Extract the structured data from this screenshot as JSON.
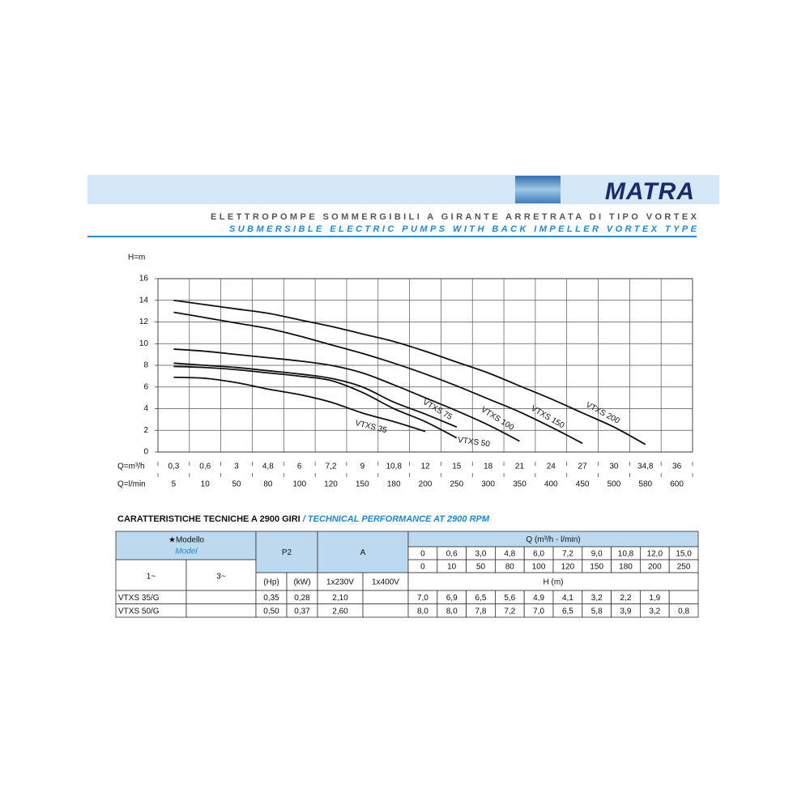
{
  "header": {
    "logo": "MATRA",
    "title_it": "ELETTROPOMPE SOMMERGIBILI A GIRANTE ARRETRATA DI TIPO VORTEX",
    "title_en": "SUBMERSIBLE ELECTRIC PUMPS WITH BACK IMPELLER VORTEX TYPE"
  },
  "chart_data": {
    "type": "line",
    "ylabel": "H=m",
    "xlabel": "Q=m³/h",
    "x2label": "Q=l/min",
    "categories": [
      "0,3",
      "0,6",
      "3",
      "4,8",
      "6",
      "7,2",
      "9",
      "10,8",
      "12",
      "15",
      "18",
      "21",
      "24",
      "27",
      "30",
      "34,8",
      "36"
    ],
    "categories_lmin": [
      "5",
      "10",
      "50",
      "80",
      "100",
      "120",
      "150",
      "180",
      "200",
      "250",
      "300",
      "350",
      "400",
      "450",
      "500",
      "580",
      "600"
    ],
    "ylim": [
      0,
      16
    ],
    "yticks": [
      0,
      2,
      4,
      6,
      8,
      10,
      12,
      14,
      16
    ],
    "grid": true,
    "series": [
      {
        "name": "VTXS 35",
        "color": "#111111",
        "values": [
          6.9,
          6.8,
          6.4,
          5.8,
          5.3,
          4.6,
          3.6,
          2.8,
          1.9,
          null,
          null,
          null,
          null,
          null,
          null,
          null,
          null
        ]
      },
      {
        "name": "VTXS 50",
        "color": "#111111",
        "values": [
          7.9,
          7.8,
          7.6,
          7.3,
          7.0,
          6.6,
          5.5,
          4.0,
          2.8,
          1.3,
          null,
          null,
          null,
          null,
          null,
          null,
          null
        ]
      },
      {
        "name": "VTXS 75",
        "color": "#111111",
        "values": [
          8.2,
          8.0,
          7.8,
          7.5,
          7.2,
          6.8,
          6.0,
          4.6,
          3.5,
          2.3,
          null,
          null,
          null,
          null,
          null,
          null,
          null
        ]
      },
      {
        "name": "VTXS 100",
        "color": "#111111",
        "values": [
          9.5,
          9.3,
          9.0,
          8.7,
          8.4,
          8.0,
          7.3,
          6.2,
          5.0,
          3.8,
          2.5,
          1.0,
          null,
          null,
          null,
          null,
          null
        ]
      },
      {
        "name": "VTXS 150",
        "color": "#111111",
        "values": [
          12.9,
          12.4,
          11.9,
          11.4,
          10.7,
          9.9,
          9.1,
          8.2,
          7.2,
          6.1,
          4.9,
          3.7,
          2.3,
          0.8,
          null,
          null,
          null
        ]
      },
      {
        "name": "VTXS 200",
        "color": "#111111",
        "values": [
          14.0,
          13.6,
          13.2,
          12.8,
          12.2,
          11.6,
          10.9,
          10.2,
          9.3,
          8.3,
          7.3,
          6.1,
          4.9,
          3.6,
          2.3,
          0.7,
          null
        ]
      }
    ]
  },
  "table": {
    "title": "CARATTERISTICHE TECNICHE A 2900 GIRI",
    "title_en": "/ TECHNICAL PERFORMANCE AT 2900 RPM",
    "model_header": "★Modello",
    "model_header_en": "Model",
    "p2": "P2",
    "a": "A",
    "q_header": "Q (m³/h - l/min)",
    "q_m3h": [
      "0",
      "0,6",
      "3,0",
      "4,8",
      "6,0",
      "7,2",
      "9,0",
      "10,8",
      "12,0",
      "15,0"
    ],
    "q_lmin": [
      "0",
      "10",
      "50",
      "80",
      "100",
      "120",
      "150",
      "180",
      "200",
      "250"
    ],
    "phase1": "1~",
    "phase3": "3~",
    "hp": "(Hp)",
    "kw": "(kW)",
    "a1": "1x230V",
    "a3": "1x400V",
    "h_header": "H (m)",
    "rows": [
      {
        "model": "VTXS 35/G",
        "hp": "0,35",
        "kw": "0,28",
        "a1": "2,10",
        "h": [
          "7,0",
          "6,9",
          "6,5",
          "5,6",
          "4,9",
          "4,1",
          "3,2",
          "2,2",
          "1,9"
        ]
      },
      {
        "model": "VTXS 50/G",
        "hp": "0,50",
        "kw": "0,37",
        "a1": "2,60",
        "h": [
          "8,0",
          "8,0",
          "7,8",
          "7,2",
          "7,0",
          "6,5",
          "5,8",
          "3,9",
          "3,2",
          "0,8"
        ]
      }
    ]
  }
}
